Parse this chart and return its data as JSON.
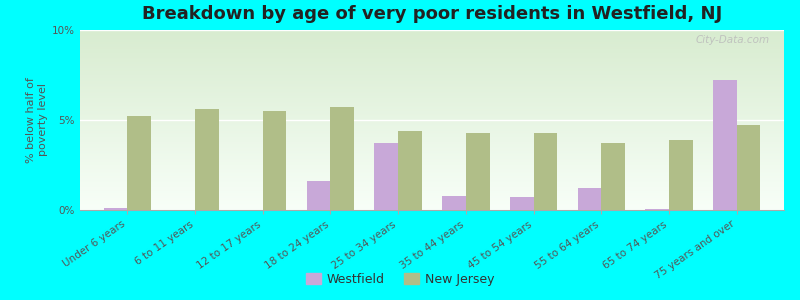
{
  "title": "Breakdown by age of very poor residents in Westfield, NJ",
  "ylabel": "% below half of\npoverty level",
  "background_color": "#00FFFF",
  "plot_bg_top": "#d8ecd0",
  "plot_bg_bottom": "#f8fff8",
  "categories": [
    "Under 6 years",
    "6 to 11 years",
    "12 to 17 years",
    "18 to 24 years",
    "25 to 34 years",
    "35 to 44 years",
    "45 to 54 years",
    "55 to 64 years",
    "65 to 74 years",
    "75 years and over"
  ],
  "westfield": [
    0.1,
    0.0,
    0.0,
    1.6,
    3.7,
    0.8,
    0.7,
    1.2,
    0.05,
    7.2
  ],
  "new_jersey": [
    5.2,
    5.6,
    5.5,
    5.7,
    4.4,
    4.3,
    4.3,
    3.7,
    3.9,
    4.7
  ],
  "westfield_color": "#c8a8d8",
  "nj_color": "#b0be88",
  "ylim": [
    0,
    10
  ],
  "yticks": [
    0,
    5,
    10
  ],
  "ytick_labels": [
    "0%",
    "5%",
    "10%"
  ],
  "watermark": "City-Data.com",
  "legend_westfield": "Westfield",
  "legend_nj": "New Jersey",
  "title_fontsize": 13,
  "axis_label_fontsize": 8,
  "tick_label_fontsize": 7.5
}
